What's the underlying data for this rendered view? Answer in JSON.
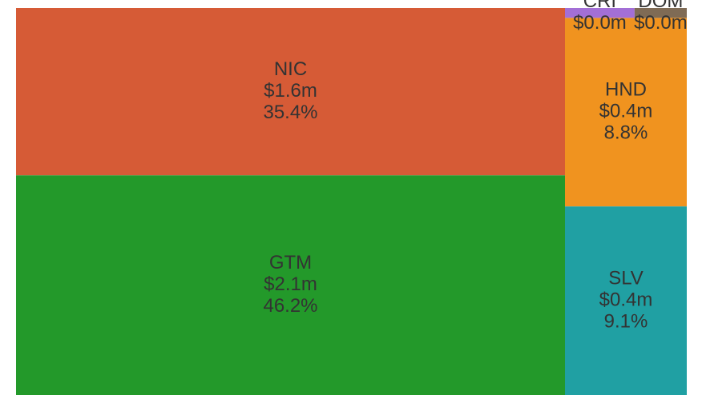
{
  "chart_data": {
    "type": "treemap",
    "categories": [
      "GTM",
      "NIC",
      "SLV",
      "HND",
      "CRI",
      "DOM"
    ],
    "values": [
      2.1,
      1.6,
      0.4,
      0.4,
      0.012,
      0.009
    ],
    "value_labels": [
      "$2.1m",
      "$1.6m",
      "$0.4m",
      "$0.4m",
      "$0.0m",
      "$0.0m"
    ],
    "percent_labels": [
      "46.2%",
      "35.4%",
      "9.1%",
      "8.8%",
      null,
      null
    ],
    "colors": [
      "#23992a",
      "#d65b36",
      "#20a0a3",
      "#f0931f",
      "#a36fd6",
      "#7f6b55"
    ]
  }
}
